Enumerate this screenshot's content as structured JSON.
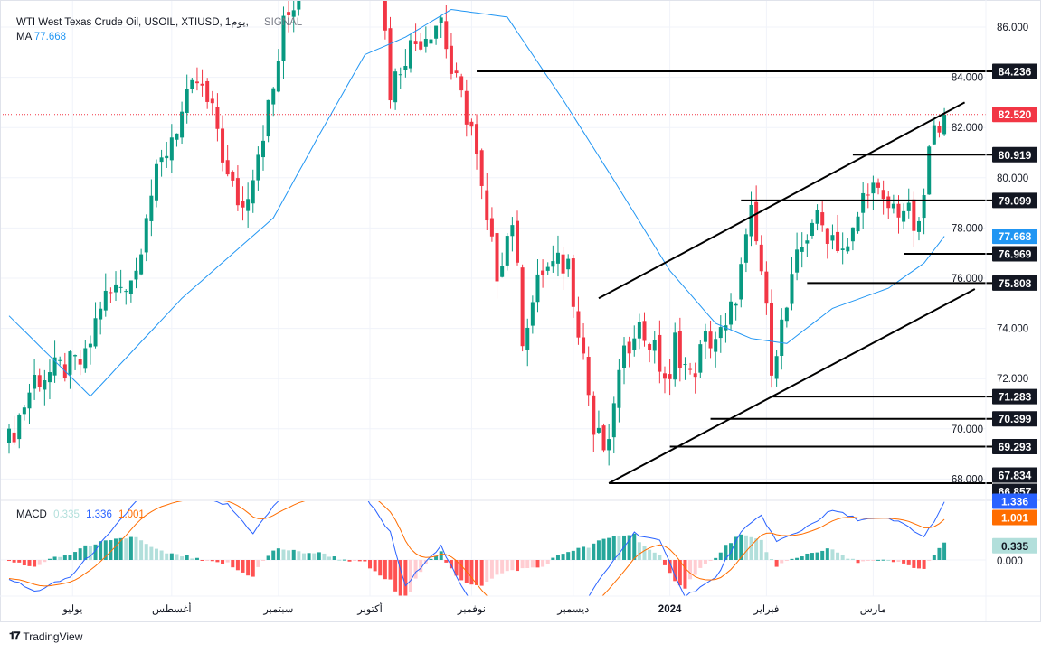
{
  "header": {
    "title": "WTI West Texas Crude Oil, USOIL, XTIUSD, 1يوم,",
    "overlay_text": "SIGNAL",
    "ma_label": "MA",
    "ma_value": "77.668"
  },
  "macd_legend": {
    "label": "MACD",
    "hist": "0.335",
    "macd": "1.336",
    "signal": "1.001"
  },
  "branding": {
    "logo_text": "TradingView"
  },
  "colors": {
    "up": "#089981",
    "down": "#f23645",
    "ma": "#2196f3",
    "macd": "#2962ff",
    "signal": "#ff6d00",
    "tag_bg": "#131722",
    "price_tag": "#f23645",
    "hist_up": "#26a69a",
    "hist_up_light": "#b2dfdb",
    "hist_down": "#ff5252",
    "hist_down_light": "#ffcdd2"
  },
  "chart_data": {
    "type": "candlestick",
    "title": "WTI West Texas Crude Oil, USOIL, XTIUSD, 1D",
    "ylim": [
      66.3,
      87.0
    ],
    "candle_count": 185,
    "y_ticks": [
      "86.000",
      "84.000",
      "82.000",
      "80.000",
      "78.000",
      "76.000",
      "74.000",
      "72.000",
      "70.000",
      "68.000"
    ],
    "x_ticks": [
      {
        "index": 12.5,
        "label": "يوليو"
      },
      {
        "index": 32,
        "label": "أغسطس"
      },
      {
        "index": 53,
        "label": "سبتمبر"
      },
      {
        "index": 71,
        "label": "أكتوبر"
      },
      {
        "index": 91,
        "label": "نوفمبر"
      },
      {
        "index": 111,
        "label": "ديسمبر"
      },
      {
        "index": 130,
        "label": "2024"
      },
      {
        "index": 149,
        "label": "فبراير"
      },
      {
        "index": 170,
        "label": "مارس"
      }
    ],
    "close_path": [
      [
        0,
        69.5
      ],
      [
        5,
        72
      ],
      [
        15,
        72.7
      ],
      [
        18,
        75
      ],
      [
        25,
        76.3
      ],
      [
        27,
        78.8
      ],
      [
        32,
        81.7
      ],
      [
        37,
        83.8
      ],
      [
        41,
        82
      ],
      [
        43,
        79.9
      ],
      [
        46,
        78.8
      ],
      [
        52,
        83.5
      ],
      [
        54,
        86
      ],
      [
        57,
        87.5
      ],
      [
        62,
        89
      ],
      [
        68,
        89.5
      ],
      [
        73,
        88
      ],
      [
        75,
        83.5
      ],
      [
        78,
        85
      ],
      [
        85,
        86.4
      ],
      [
        87,
        84.2
      ],
      [
        91,
        82
      ],
      [
        94,
        78
      ],
      [
        96,
        76.3
      ],
      [
        99,
        78.4
      ],
      [
        101,
        73.8
      ],
      [
        105,
        76.3
      ],
      [
        110,
        76.6
      ],
      [
        113,
        73
      ],
      [
        115,
        69.8
      ],
      [
        118,
        69
      ],
      [
        119,
        71.3
      ],
      [
        123,
        74.2
      ],
      [
        126,
        73.5
      ],
      [
        130,
        71.6
      ],
      [
        131,
        73.5
      ],
      [
        134,
        72
      ],
      [
        137,
        73.5
      ],
      [
        141,
        73.8
      ],
      [
        144,
        76.3
      ],
      [
        146,
        78.4
      ],
      [
        148,
        76.3
      ],
      [
        150,
        72.7
      ],
      [
        153,
        74.8
      ],
      [
        155,
        76.6
      ],
      [
        158,
        78.4
      ],
      [
        162,
        77.7
      ],
      [
        165,
        77
      ],
      [
        169,
        79.9
      ],
      [
        172,
        78.8
      ],
      [
        176,
        78.8
      ],
      [
        179,
        77.7
      ],
      [
        181,
        81
      ],
      [
        183,
        82.4
      ],
      [
        184,
        82.52
      ]
    ],
    "ma": {
      "label": "MA",
      "last": 77.668,
      "path": [
        [
          0,
          74.5
        ],
        [
          16,
          71.3
        ],
        [
          34,
          75.2
        ],
        [
          52,
          78.4
        ],
        [
          61,
          81.7
        ],
        [
          70,
          84.9
        ],
        [
          78,
          85.6
        ],
        [
          87,
          86.7
        ],
        [
          98,
          86.4
        ],
        [
          109,
          83.1
        ],
        [
          119,
          79.9
        ],
        [
          130,
          76.3
        ],
        [
          139,
          74.2
        ],
        [
          146,
          73.6
        ],
        [
          153,
          73.4
        ],
        [
          162,
          74.8
        ],
        [
          173,
          75.6
        ],
        [
          180,
          76.6
        ],
        [
          184,
          77.668
        ]
      ]
    },
    "current_price": 82.52,
    "levels": [
      {
        "price": 84.236,
        "label": "84.236",
        "from_index": 92
      },
      {
        "price": 80.919,
        "label": "80.919",
        "from_index": 166
      },
      {
        "price": 79.099,
        "label": "79.099",
        "from_index": 144
      },
      {
        "price": 76.969,
        "label": "76.969",
        "from_index": 176
      },
      {
        "price": 75.808,
        "label": "75.808",
        "from_index": 157
      },
      {
        "price": 71.283,
        "label": "71.283",
        "from_index": 150
      },
      {
        "price": 70.399,
        "label": "70.399",
        "from_index": 138
      },
      {
        "price": 69.293,
        "label": "69.293",
        "from_index": 130
      },
      {
        "price": 67.834,
        "label": "67.834",
        "from_index": 118
      },
      {
        "price": 66.857,
        "label": "66.857",
        "from_index": 184
      }
    ],
    "channel": [
      {
        "name": "upper",
        "from": [
          116,
          75.2
        ],
        "to": [
          188,
          83.0
        ]
      },
      {
        "name": "lower",
        "from": [
          118,
          67.834
        ],
        "to": [
          190,
          75.57
        ]
      }
    ],
    "macd": {
      "ylim": [
        -1.0,
        1.4
      ],
      "zero_label": "0.000",
      "path": [
        [
          0,
          -0.43
        ],
        [
          5,
          -0.75
        ],
        [
          12,
          -0.4
        ],
        [
          20,
          0.64
        ],
        [
          25,
          1.4
        ],
        [
          35,
          1.5
        ],
        [
          43,
          1.3
        ],
        [
          48,
          0.64
        ],
        [
          53,
          1.4
        ],
        [
          62,
          1.7
        ],
        [
          70,
          1.5
        ],
        [
          75,
          0.64
        ],
        [
          78,
          -0.64
        ],
        [
          82,
          0
        ],
        [
          85,
          0.32
        ],
        [
          89,
          -0.64
        ],
        [
          93,
          -1.3
        ],
        [
          105,
          -1.7
        ],
        [
          114,
          -0.85
        ],
        [
          119,
          0
        ],
        [
          123,
          0.64
        ],
        [
          128,
          0.43
        ],
        [
          133,
          -0.85
        ],
        [
          139,
          -0.43
        ],
        [
          144,
          0.64
        ],
        [
          148,
          1.06
        ],
        [
          151,
          0.43
        ],
        [
          155,
          0.64
        ],
        [
          162,
          1.17
        ],
        [
          167,
          0.96
        ],
        [
          173,
          0.96
        ],
        [
          176,
          0.85
        ],
        [
          180,
          0.53
        ],
        [
          184,
          1.336
        ]
      ]
    }
  }
}
